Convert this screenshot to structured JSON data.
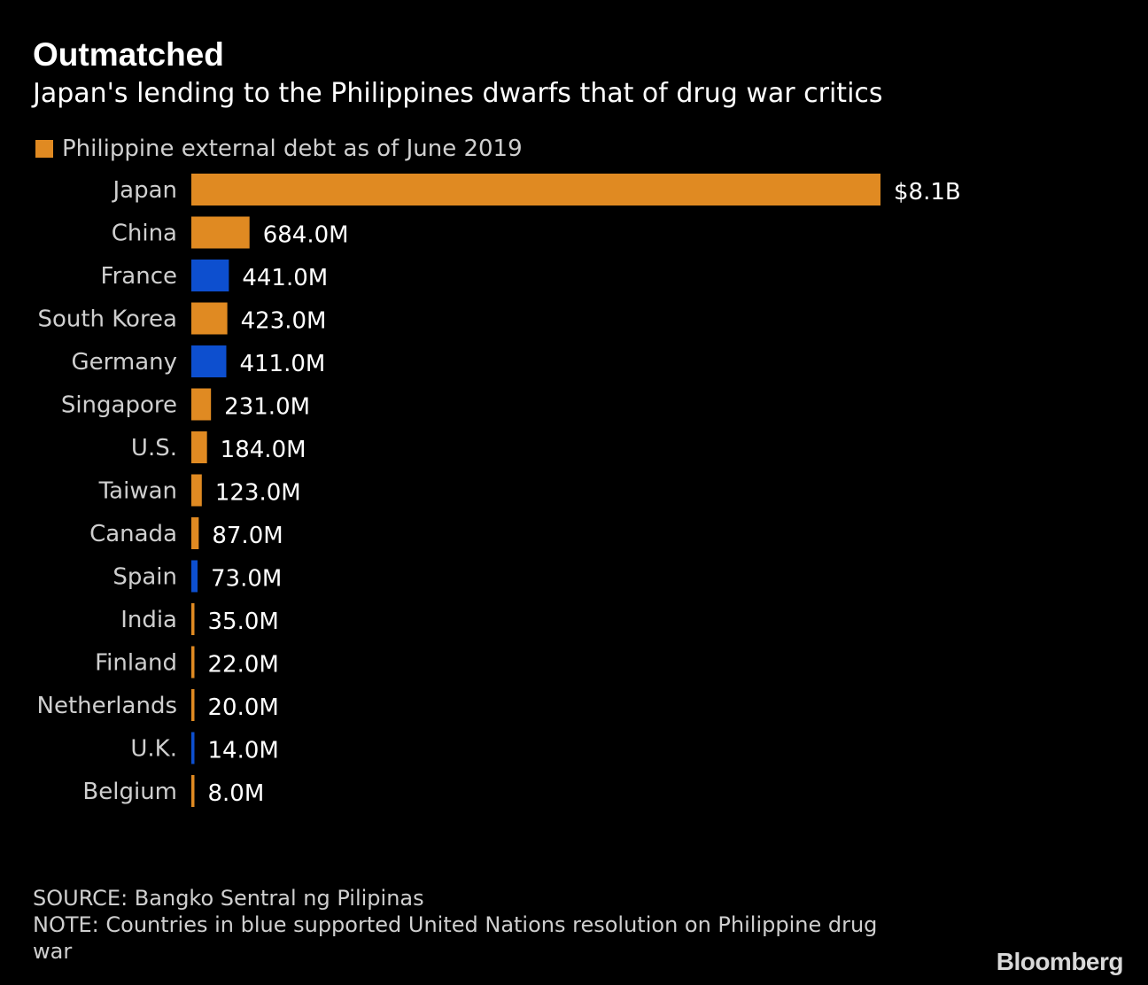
{
  "title": "Outmatched",
  "subtitle": "Japan's lending to the Philippines dwarfs that of drug war critics",
  "legend": {
    "label": "Philippine external debt as of June 2019",
    "color": "#e08a22"
  },
  "chart_data": {
    "type": "bar",
    "orientation": "horizontal",
    "unit": "USD millions",
    "categories": [
      "Japan",
      "China",
      "France",
      "South Korea",
      "Germany",
      "Singapore",
      "U.S.",
      "Taiwan",
      "Canada",
      "Spain",
      "India",
      "Finland",
      "Netherlands",
      "U.K.",
      "Belgium"
    ],
    "values": [
      8100,
      684,
      441,
      423,
      411,
      231,
      184,
      123,
      87,
      73,
      35,
      22,
      20,
      14,
      8
    ],
    "value_labels": [
      "$8.1B",
      "684.0M",
      "441.0M",
      "423.0M",
      "411.0M",
      "231.0M",
      "184.0M",
      "123.0M",
      "87.0M",
      "73.0M",
      "35.0M",
      "22.0M",
      "20.0M",
      "14.0M",
      "8.0M"
    ],
    "supported_un_resolution": [
      false,
      false,
      true,
      false,
      true,
      false,
      false,
      false,
      false,
      true,
      false,
      false,
      false,
      true,
      false
    ],
    "colors": {
      "default": "#e08a22",
      "supported_un_resolution": "#0d4fcf"
    },
    "legend_position": "top-left",
    "grid": false
  },
  "footer": {
    "source": "SOURCE: Bangko Sentral ng Pilipinas",
    "note": "NOTE: Countries in blue supported United Nations resolution on Philippine drug war"
  },
  "brand": "Bloomberg"
}
